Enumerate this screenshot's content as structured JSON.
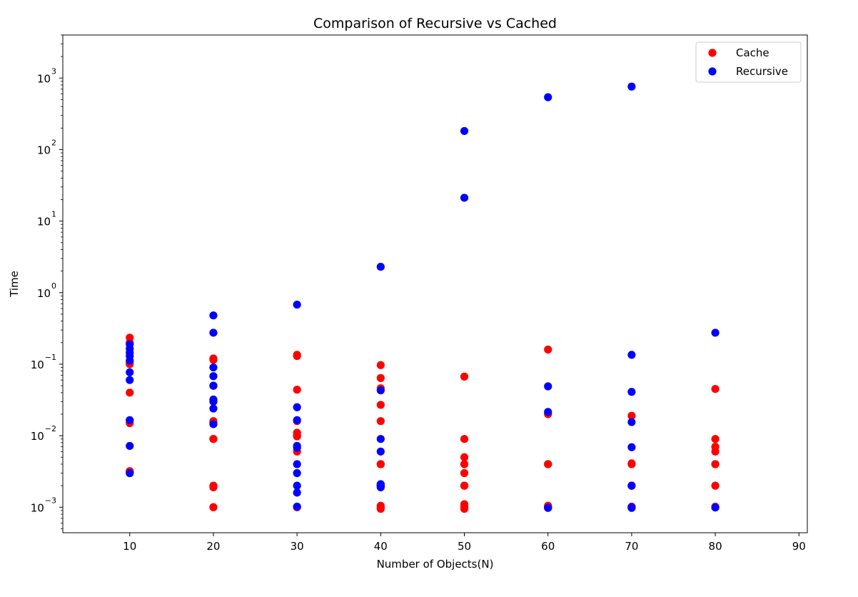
{
  "chart_data": {
    "type": "scatter",
    "title": "Comparison of Recursive vs Cached",
    "xlabel": "Number of Objects(N)",
    "ylabel": "Time",
    "xlim": [
      2,
      91
    ],
    "ylim": [
      0.00044,
      4000
    ],
    "yscale": "log",
    "grid": false,
    "legend_position": "top-right",
    "x_ticks": [
      10,
      20,
      30,
      40,
      50,
      60,
      70,
      80,
      90
    ],
    "x_tick_labels": [
      "10",
      "20",
      "30",
      "40",
      "50",
      "60",
      "70",
      "80",
      "90"
    ],
    "y_ticks": [
      0.001,
      0.01,
      0.1,
      1,
      10,
      100,
      1000
    ],
    "y_tick_labels": [
      {
        "base": "10",
        "exp": "−3"
      },
      {
        "base": "10",
        "exp": "−2"
      },
      {
        "base": "10",
        "exp": "−1"
      },
      {
        "base": "10",
        "exp": "0"
      },
      {
        "base": "10",
        "exp": "1"
      },
      {
        "base": "10",
        "exp": "2"
      },
      {
        "base": "10",
        "exp": "3"
      }
    ],
    "series": [
      {
        "name": "Cache",
        "color": "#ff0000",
        "x": [
          10,
          10,
          10,
          10,
          10,
          10,
          10,
          10,
          10,
          10,
          20,
          20,
          20,
          20,
          20,
          20,
          20,
          20,
          20,
          20,
          30,
          30,
          30,
          30,
          30,
          30,
          30,
          30,
          30,
          30,
          40,
          40,
          40,
          40,
          40,
          40,
          40,
          40,
          40,
          40,
          50,
          50,
          50,
          50,
          50,
          50,
          50,
          50,
          50,
          50,
          60,
          60,
          60,
          60,
          60,
          60,
          60,
          60,
          60,
          60,
          70,
          70,
          70,
          70,
          70,
          70,
          70,
          70,
          70,
          70,
          80,
          80,
          80,
          80,
          80,
          80,
          80,
          80,
          80,
          80
        ],
        "y": [
          0.235,
          0.2,
          0.1,
          0.105,
          0.04,
          0.015,
          0.0162,
          0.0032,
          0.003,
          0.0031,
          0.12,
          0.115,
          0.016,
          0.0155,
          0.009,
          0.009,
          0.002,
          0.0019,
          0.001,
          0.001,
          0.135,
          0.13,
          0.044,
          0.016,
          0.011,
          0.006,
          0.001,
          0.001,
          0.0102,
          0.0098,
          0.097,
          0.064,
          0.046,
          0.027,
          0.016,
          0.004,
          0.004,
          0.001,
          0.00105,
          0.00095,
          0.067,
          0.009,
          0.005,
          0.004,
          0.003,
          0.002,
          0.002,
          0.001,
          0.0011,
          0.00095,
          0.16,
          0.02,
          0.004,
          0.004,
          0.001,
          0.001,
          0.00105,
          0.001,
          0.00098,
          0.001,
          0.019,
          0.004,
          0.0041,
          0.002,
          0.002,
          0.001,
          0.001,
          0.00102,
          0.00098,
          0.001,
          0.045,
          0.009,
          0.007,
          0.006,
          0.004,
          0.004,
          0.002,
          0.001,
          0.001,
          0.00102
        ]
      },
      {
        "name": "Recursive",
        "color": "#0000ff",
        "x": [
          10,
          10,
          10,
          10,
          10,
          10,
          10,
          10,
          10,
          10,
          20,
          20,
          20,
          20,
          20,
          20,
          20,
          20,
          20,
          20,
          30,
          30,
          30,
          30,
          30,
          30,
          30,
          30,
          30,
          30,
          40,
          40,
          40,
          40,
          40,
          40,
          40,
          40,
          40,
          40,
          50,
          50,
          60,
          60,
          60,
          60,
          70,
          70,
          70,
          70,
          70,
          70,
          70,
          70,
          80,
          80
        ],
        "y": [
          0.19,
          0.165,
          0.145,
          0.13,
          0.112,
          0.077,
          0.06,
          0.0165,
          0.0072,
          0.003,
          0.48,
          0.275,
          0.09,
          0.068,
          0.05,
          0.032,
          0.024,
          0.0145,
          0.03,
          0.05,
          0.68,
          0.025,
          0.0165,
          0.0072,
          0.0068,
          0.004,
          0.003,
          0.002,
          0.00102,
          0.0016,
          2.3,
          0.043,
          0.009,
          0.006,
          0.002,
          0.00205,
          0.002,
          0.00195,
          0.0021,
          0.0019,
          182,
          21.2,
          540,
          0.049,
          0.0215,
          0.00098,
          760,
          0.135,
          0.041,
          0.0155,
          0.0069,
          0.002,
          0.00098,
          0.001,
          0.275,
          0.00099
        ]
      }
    ]
  }
}
